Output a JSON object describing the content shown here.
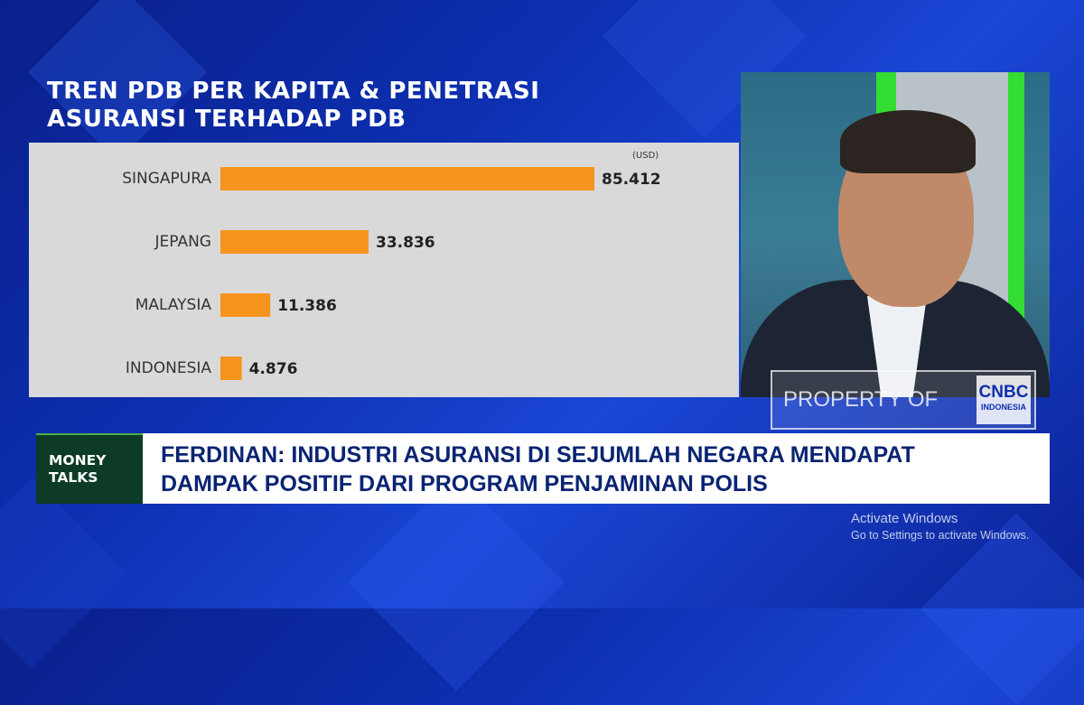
{
  "title": {
    "line1": "TREN PDB PER KAPITA & PENETRASI",
    "line2": "ASURANSI TERHADAP PDB"
  },
  "chart_data": {
    "type": "bar",
    "orientation": "horizontal",
    "unit_label": "(USD)",
    "categories": [
      "SINGAPURA",
      "JEPANG",
      "MALAYSIA",
      "INDONESIA"
    ],
    "values": [
      85412,
      33836,
      11386,
      4876
    ],
    "value_labels": [
      "85.412",
      "33.836",
      "11.386",
      "4.876"
    ],
    "xlim": [
      0,
      85412
    ],
    "bar_color": "#f7941d",
    "background": "#d9d9d9",
    "grid": false
  },
  "watermark": {
    "text": "PROPERTY OF",
    "logo_line1": "CNBC",
    "logo_line2": "INDONESIA"
  },
  "lower_third": {
    "badge_line1": "MONEY",
    "badge_line2": "TALKS",
    "headline_line1": "FERDINAN: INDUSTRI ASURANSI DI SEJUMLAH NEGARA MENDAPAT",
    "headline_line2": "DAMPAK POSITIF DARI PROGRAM PENJAMINAN POLIS"
  },
  "os_notice": {
    "line1": "Activate Windows",
    "line2": "Go to Settings to activate Windows."
  }
}
